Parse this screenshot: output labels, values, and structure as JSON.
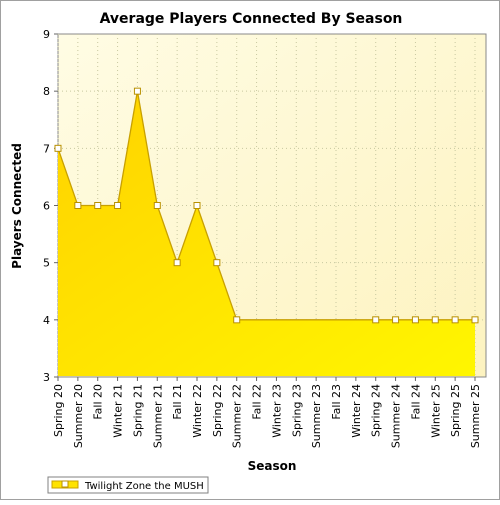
{
  "chart_data": {
    "type": "area",
    "title": "Average Players Connected By Season",
    "xlabel": "Season",
    "ylabel": "Players Connected",
    "ylim": [
      3,
      9
    ],
    "yticks": [
      3,
      4,
      5,
      6,
      7,
      8,
      9
    ],
    "grid": true,
    "legend_position": "bottom-left",
    "categories": [
      "Spring 20",
      "Summer 20",
      "Fall 20",
      "Winter 21",
      "Spring 21",
      "Summer 21",
      "Fall 21",
      "Winter 22",
      "Spring 22",
      "Summer 22",
      "Fall 22",
      "Winter 23",
      "Spring 23",
      "Summer 23",
      "Fall 23",
      "Winter 24",
      "Spring 24",
      "Summer 24",
      "Fall 24",
      "Winter 25",
      "Spring 25",
      "Summer 25"
    ],
    "series": [
      {
        "name": "Twilight Zone the MUSH",
        "values": [
          7,
          6,
          6,
          6,
          8,
          6,
          5,
          6,
          5,
          4,
          4,
          4,
          4,
          4,
          4,
          4,
          4,
          4,
          4,
          4,
          4,
          4
        ],
        "markers": [
          true,
          true,
          true,
          true,
          true,
          true,
          true,
          true,
          true,
          true,
          false,
          false,
          false,
          false,
          false,
          false,
          true,
          true,
          true,
          true,
          true,
          true
        ]
      }
    ],
    "colors": {
      "plot_bg_top": "#fffce0",
      "plot_bg_bottom": "#fef6c8",
      "area_top": "#ffd400",
      "area_bottom": "#fff200",
      "line": "#c8a000",
      "grid": "#c8c8a0",
      "marker_fill": "#ffffff",
      "marker_stroke": "#b89000"
    }
  }
}
